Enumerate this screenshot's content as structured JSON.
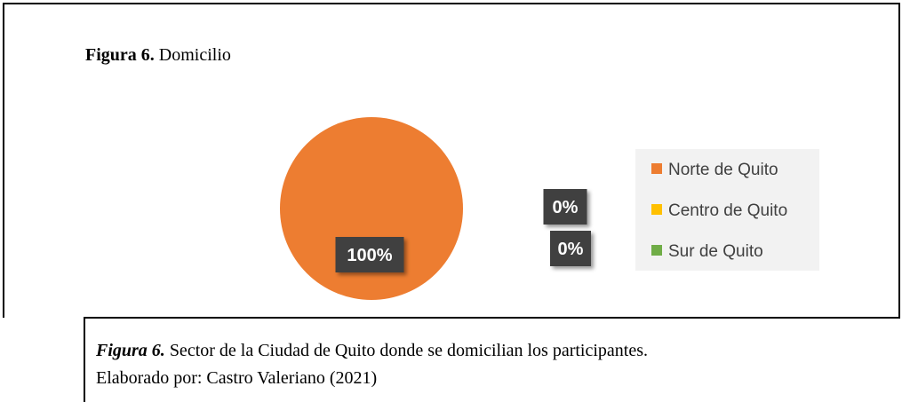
{
  "header": {
    "label": "Figura 6.",
    "title": "Domicilio"
  },
  "chart_data": {
    "type": "pie",
    "categories": [
      "Norte de Quito",
      "Centro de Quito",
      "Sur de Quito"
    ],
    "values": [
      100,
      0,
      0
    ],
    "value_labels": [
      "100%",
      "0%",
      "0%"
    ],
    "colors": [
      "#ED7D31",
      "#FFC000",
      "#70AD47"
    ],
    "legend": "right"
  },
  "caption": {
    "label": "Figura 6.",
    "text": "Sector de la Ciudad de Quito donde se domicilian los participantes.",
    "credit": "Elaborado por: Castro Valeriano (2021)"
  }
}
